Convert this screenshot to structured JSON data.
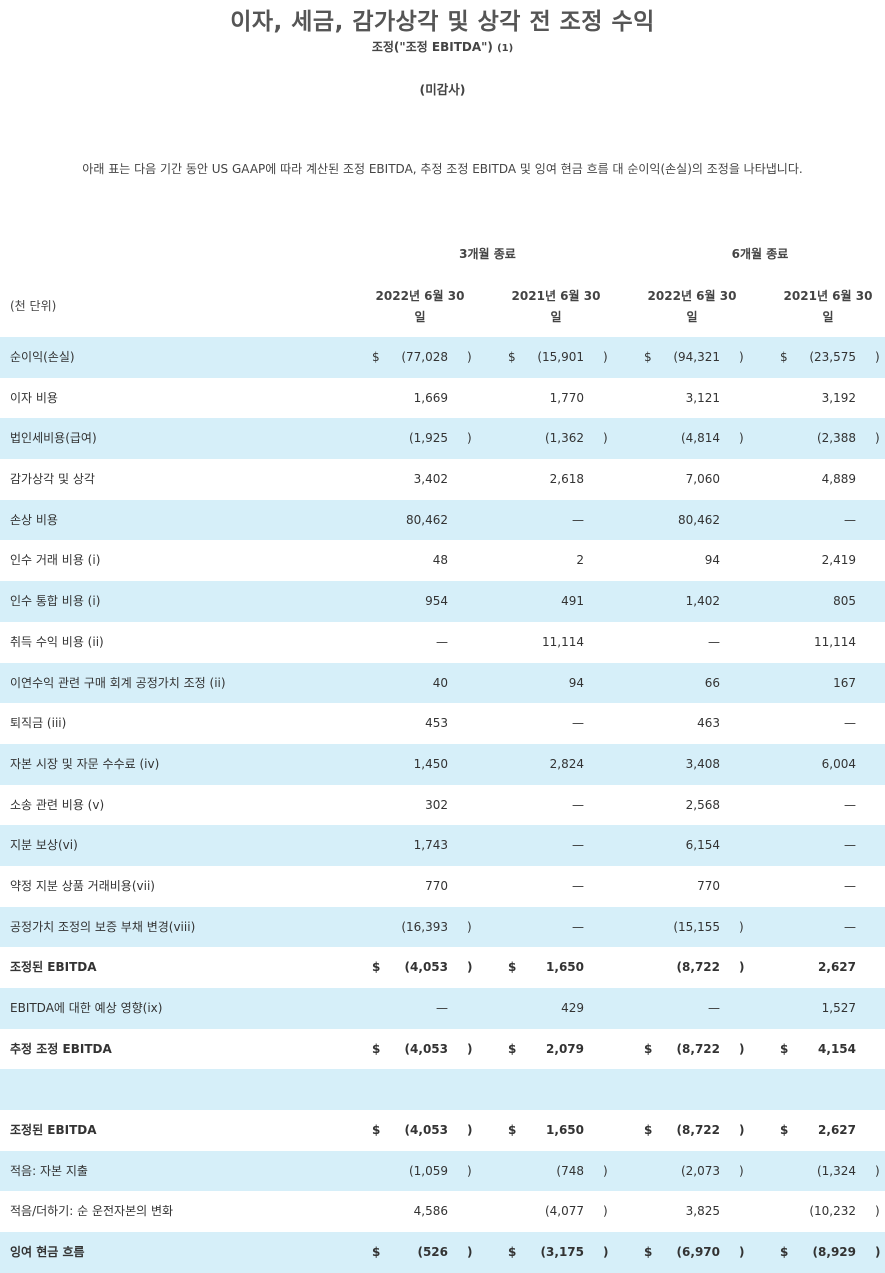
{
  "title": "이자, 세금, 감가상각 및 상각 전 조정 수익",
  "subtitle": "조정(\"조정 EBITDA\")",
  "subtitle_footnote": "(1)",
  "unaudited": "(미감사)",
  "intro": "아래 표는 다음 기간 동안 US GAAP에 따라 계산된 조정 EBITDA, 추정 조정 EBITDA 및 잉여 현금 흐름 대 순이익(손실)의 조정을 나타냅니다.",
  "unit_label": "(천 단위)",
  "groups": [
    "3개월 종료",
    "6개월 종료"
  ],
  "columns": [
    {
      "line1": "2022년 6월 30",
      "line2": "일"
    },
    {
      "line1": "2021년 6월 30",
      "line2": "일"
    },
    {
      "line1": "2022년 6월 30",
      "line2": "일"
    },
    {
      "line1": "2021년 6월 30",
      "line2": "일"
    }
  ],
  "colors": {
    "row_shade": "#d6eff9",
    "text": "#333333"
  },
  "rows": [
    {
      "label": "순이익(손실)",
      "shade": true,
      "bold": false,
      "cells": [
        {
          "cur": "$",
          "val": "(77,028",
          "par": ")"
        },
        {
          "cur": "$",
          "val": "(15,901",
          "par": ")"
        },
        {
          "cur": "$",
          "val": "(94,321",
          "par": ")"
        },
        {
          "cur": "$",
          "val": "(23,575",
          "par": ")"
        }
      ]
    },
    {
      "label": "이자 비용",
      "shade": false,
      "bold": false,
      "cells": [
        {
          "cur": "",
          "val": "1,669",
          "par": ""
        },
        {
          "cur": "",
          "val": "1,770",
          "par": ""
        },
        {
          "cur": "",
          "val": "3,121",
          "par": ""
        },
        {
          "cur": "",
          "val": "3,192",
          "par": ""
        }
      ]
    },
    {
      "label": "법인세비용(급여)",
      "shade": true,
      "bold": false,
      "cells": [
        {
          "cur": "",
          "val": "(1,925",
          "par": ")"
        },
        {
          "cur": "",
          "val": "(1,362",
          "par": ")"
        },
        {
          "cur": "",
          "val": "(4,814",
          "par": ")"
        },
        {
          "cur": "",
          "val": "(2,388",
          "par": ")"
        }
      ]
    },
    {
      "label": "감가상각 및 상각",
      "shade": false,
      "bold": false,
      "cells": [
        {
          "cur": "",
          "val": "3,402",
          "par": ""
        },
        {
          "cur": "",
          "val": "2,618",
          "par": ""
        },
        {
          "cur": "",
          "val": "7,060",
          "par": ""
        },
        {
          "cur": "",
          "val": "4,889",
          "par": ""
        }
      ]
    },
    {
      "label": "손상 비용",
      "shade": true,
      "bold": false,
      "cells": [
        {
          "cur": "",
          "val": "80,462",
          "par": ""
        },
        {
          "cur": "",
          "val": "—",
          "par": ""
        },
        {
          "cur": "",
          "val": "80,462",
          "par": ""
        },
        {
          "cur": "",
          "val": "—",
          "par": ""
        }
      ]
    },
    {
      "label": "인수 거래 비용 (i)",
      "shade": false,
      "bold": false,
      "cells": [
        {
          "cur": "",
          "val": "48",
          "par": ""
        },
        {
          "cur": "",
          "val": "2",
          "par": ""
        },
        {
          "cur": "",
          "val": "94",
          "par": ""
        },
        {
          "cur": "",
          "val": "2,419",
          "par": ""
        }
      ]
    },
    {
      "label": "인수 통합 비용 (i)",
      "shade": true,
      "bold": false,
      "cells": [
        {
          "cur": "",
          "val": "954",
          "par": ""
        },
        {
          "cur": "",
          "val": "491",
          "par": ""
        },
        {
          "cur": "",
          "val": "1,402",
          "par": ""
        },
        {
          "cur": "",
          "val": "805",
          "par": ""
        }
      ]
    },
    {
      "label": "취득 수익 비용 (ii)",
      "shade": false,
      "bold": false,
      "cells": [
        {
          "cur": "",
          "val": "—",
          "par": ""
        },
        {
          "cur": "",
          "val": "11,114",
          "par": ""
        },
        {
          "cur": "",
          "val": "—",
          "par": ""
        },
        {
          "cur": "",
          "val": "11,114",
          "par": ""
        }
      ]
    },
    {
      "label": "이연수익 관련 구매 회계 공정가치 조정 (ii)",
      "shade": true,
      "bold": false,
      "cells": [
        {
          "cur": "",
          "val": "40",
          "par": ""
        },
        {
          "cur": "",
          "val": "94",
          "par": ""
        },
        {
          "cur": "",
          "val": "66",
          "par": ""
        },
        {
          "cur": "",
          "val": "167",
          "par": ""
        }
      ]
    },
    {
      "label": "퇴직금 (iii)",
      "shade": false,
      "bold": false,
      "cells": [
        {
          "cur": "",
          "val": "453",
          "par": ""
        },
        {
          "cur": "",
          "val": "—",
          "par": ""
        },
        {
          "cur": "",
          "val": "463",
          "par": ""
        },
        {
          "cur": "",
          "val": "—",
          "par": ""
        }
      ]
    },
    {
      "label": "자본 시장 및 자문 수수료 (iv)",
      "shade": true,
      "bold": false,
      "cells": [
        {
          "cur": "",
          "val": "1,450",
          "par": ""
        },
        {
          "cur": "",
          "val": "2,824",
          "par": ""
        },
        {
          "cur": "",
          "val": "3,408",
          "par": ""
        },
        {
          "cur": "",
          "val": "6,004",
          "par": ""
        }
      ]
    },
    {
      "label": "소송 관련 비용 (v)",
      "shade": false,
      "bold": false,
      "cells": [
        {
          "cur": "",
          "val": "302",
          "par": ""
        },
        {
          "cur": "",
          "val": "—",
          "par": ""
        },
        {
          "cur": "",
          "val": "2,568",
          "par": ""
        },
        {
          "cur": "",
          "val": "—",
          "par": ""
        }
      ]
    },
    {
      "label": "지분 보상(vi)",
      "shade": true,
      "bold": false,
      "cells": [
        {
          "cur": "",
          "val": "1,743",
          "par": ""
        },
        {
          "cur": "",
          "val": "—",
          "par": ""
        },
        {
          "cur": "",
          "val": "6,154",
          "par": ""
        },
        {
          "cur": "",
          "val": "—",
          "par": ""
        }
      ]
    },
    {
      "label": "약정 지분 상품 거래비용(vii)",
      "shade": false,
      "bold": false,
      "cells": [
        {
          "cur": "",
          "val": "770",
          "par": ""
        },
        {
          "cur": "",
          "val": "—",
          "par": ""
        },
        {
          "cur": "",
          "val": "770",
          "par": ""
        },
        {
          "cur": "",
          "val": "—",
          "par": ""
        }
      ]
    },
    {
      "label": "공정가치 조정의 보증 부채 변경(viii)",
      "shade": true,
      "bold": false,
      "cells": [
        {
          "cur": "",
          "val": "(16,393",
          "par": ")"
        },
        {
          "cur": "",
          "val": "—",
          "par": ""
        },
        {
          "cur": "",
          "val": "(15,155",
          "par": ")"
        },
        {
          "cur": "",
          "val": "—",
          "par": ""
        }
      ]
    },
    {
      "label": "조정된 EBITDA",
      "shade": false,
      "bold": true,
      "cells": [
        {
          "cur": "$",
          "val": "(4,053",
          "par": ")"
        },
        {
          "cur": "$",
          "val": "1,650",
          "par": ""
        },
        {
          "cur": "",
          "val": "(8,722",
          "par": ")"
        },
        {
          "cur": "",
          "val": "2,627",
          "par": ""
        }
      ]
    },
    {
      "label": "EBITDA에 대한 예상 영향(ix)",
      "shade": true,
      "bold": false,
      "cells": [
        {
          "cur": "",
          "val": "—",
          "par": ""
        },
        {
          "cur": "",
          "val": "429",
          "par": ""
        },
        {
          "cur": "",
          "val": "—",
          "par": ""
        },
        {
          "cur": "",
          "val": "1,527",
          "par": ""
        }
      ]
    },
    {
      "label": "추정 조정 EBITDA",
      "shade": false,
      "bold": true,
      "cells": [
        {
          "cur": "$",
          "val": "(4,053",
          "par": ")"
        },
        {
          "cur": "$",
          "val": "2,079",
          "par": ""
        },
        {
          "cur": "$",
          "val": "(8,722",
          "par": ")"
        },
        {
          "cur": "$",
          "val": "4,154",
          "par": ""
        }
      ]
    },
    {
      "label": "",
      "shade": true,
      "bold": false,
      "cells": [
        {
          "cur": "",
          "val": "",
          "par": ""
        },
        {
          "cur": "",
          "val": "",
          "par": ""
        },
        {
          "cur": "",
          "val": "",
          "par": ""
        },
        {
          "cur": "",
          "val": "",
          "par": ""
        }
      ]
    },
    {
      "label": "조정된 EBITDA",
      "shade": false,
      "bold": true,
      "cells": [
        {
          "cur": "$",
          "val": "(4,053",
          "par": ")"
        },
        {
          "cur": "$",
          "val": "1,650",
          "par": ""
        },
        {
          "cur": "$",
          "val": "(8,722",
          "par": ")"
        },
        {
          "cur": "$",
          "val": "2,627",
          "par": ""
        }
      ]
    },
    {
      "label": "적음: 자본 지출",
      "shade": true,
      "bold": false,
      "cells": [
        {
          "cur": "",
          "val": "(1,059",
          "par": ")"
        },
        {
          "cur": "",
          "val": "(748",
          "par": ")"
        },
        {
          "cur": "",
          "val": "(2,073",
          "par": ")"
        },
        {
          "cur": "",
          "val": "(1,324",
          "par": ")"
        }
      ]
    },
    {
      "label": "적음/더하기: 순 운전자본의 변화",
      "shade": false,
      "bold": false,
      "cells": [
        {
          "cur": "",
          "val": "4,586",
          "par": ""
        },
        {
          "cur": "",
          "val": "(4,077",
          "par": ")"
        },
        {
          "cur": "",
          "val": "3,825",
          "par": ""
        },
        {
          "cur": "",
          "val": "(10,232",
          "par": ")"
        }
      ]
    },
    {
      "label": "잉여 현금 흐름",
      "shade": true,
      "bold": true,
      "cells": [
        {
          "cur": "$",
          "val": "(526",
          "par": ")"
        },
        {
          "cur": "$",
          "val": "(3,175",
          "par": ")"
        },
        {
          "cur": "$",
          "val": "(6,970",
          "par": ")"
        },
        {
          "cur": "$",
          "val": "(8,929",
          "par": ")"
        }
      ]
    }
  ]
}
